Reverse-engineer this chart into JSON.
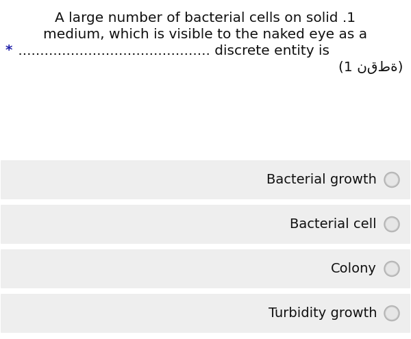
{
  "background_color": "#ffffff",
  "q_line1": "A large number of bacterial cells on solid .1",
  "q_line2": "medium, which is visible to the naked eye as a",
  "q_dots": " ............................................ discrete entity is",
  "q_arabic": "(1 نقطة)",
  "star_color": "#2222aa",
  "options": [
    "Bacterial growth",
    "Bacterial cell",
    "Colony",
    "Turbidity growth"
  ],
  "option_bg_color": "#eeeeee",
  "option_text_color": "#111111",
  "radio_outer_color": "#c8c8c8",
  "radio_inner_color": "#e6e6e6",
  "radio_border_color": "#b0b0b0",
  "question_text_color": "#111111",
  "fontsize_q": 14.5,
  "fontsize_opt": 14.0
}
